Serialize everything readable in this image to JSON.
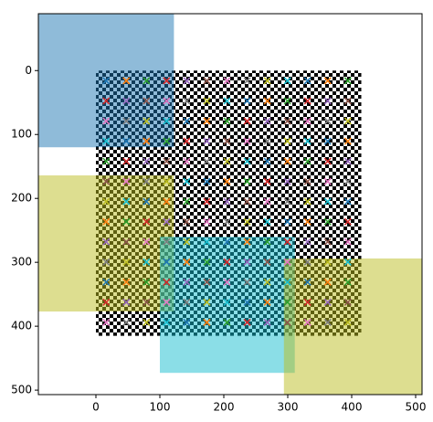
{
  "chart_data": {
    "type": "scatter",
    "xlim": [
      -90,
      510
    ],
    "ylim": [
      -89,
      507
    ],
    "y_inverted": true,
    "xticks": [
      0,
      100,
      200,
      300,
      400,
      500
    ],
    "yticks": [
      0,
      100,
      200,
      300,
      400,
      500
    ],
    "image": {
      "x": [
        0,
        415
      ],
      "y": [
        0,
        415
      ]
    },
    "rectangles": [
      {
        "x": [
          -90,
          122
        ],
        "y": [
          -89,
          120
        ],
        "color": "#1f77b4"
      },
      {
        "x": [
          -90,
          122
        ],
        "y": [
          164,
          377
        ],
        "color": "#bcbd22"
      },
      {
        "x": [
          100,
          311
        ],
        "y": [
          260,
          473
        ],
        "color": "#17becf"
      },
      {
        "x": [
          294,
          510
        ],
        "y": [
          294,
          507
        ],
        "color": "#bcbd22"
      }
    ],
    "rect_alpha": 0.5,
    "x": [
      16,
      47.5,
      79,
      110.5,
      142,
      173.5,
      205,
      236.5,
      268,
      299.5,
      331,
      362.5,
      394
    ],
    "y": [
      16,
      47.5,
      79,
      110.5,
      142,
      173.5,
      205,
      236.5,
      268,
      299.5,
      331,
      362.5,
      394
    ],
    "marker_colors": [
      "#1f77b4",
      "#ff7f0e",
      "#2ca02c",
      "#d62728",
      "#9467bd",
      "#8c564b",
      "#e377c2",
      "#7f7f7f",
      "#bcbd22",
      "#17becf"
    ]
  }
}
